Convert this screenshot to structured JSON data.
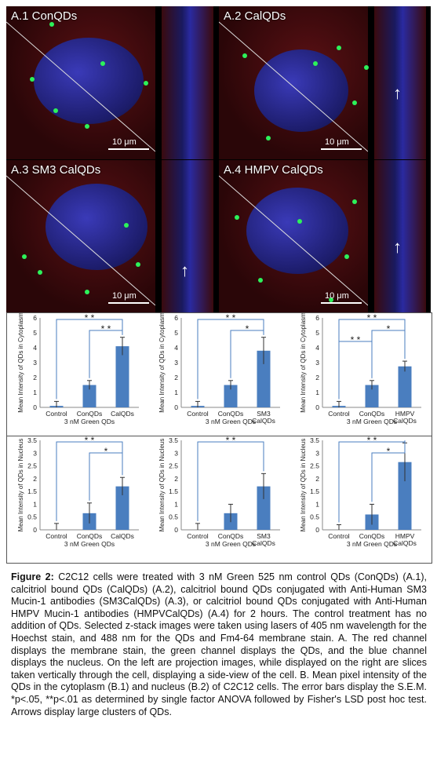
{
  "panels": [
    {
      "label": "A.1",
      "name": "ConQDs",
      "scale": "10 μm"
    },
    {
      "label": "A.2",
      "name": "CalQDs",
      "scale": "10 μm"
    },
    {
      "label": "A.3",
      "name": "SM3 CalQDs",
      "scale": "10 μm"
    },
    {
      "label": "A.4",
      "name": "HMPV CalQDs",
      "scale": "10 μm"
    }
  ],
  "colors": {
    "bar": "#4a7ebf",
    "bracket": "#4a7ebf",
    "membrane": "#c2262c",
    "qd": "#2cf25a",
    "nucleus": "#2a2aa8"
  },
  "chart_data": [
    {
      "type": "bar",
      "categories": [
        "Control",
        "ConQDs",
        "CalQDs"
      ],
      "values": [
        0.1,
        1.5,
        4.1
      ],
      "errors": [
        0.3,
        0.3,
        0.6
      ],
      "ylim": [
        0,
        6
      ],
      "yticks": [
        0,
        1,
        2,
        3,
        4,
        5,
        6
      ],
      "ylabel": "Mean Intensity of QDs in Cytoplasm",
      "xlabel": "3 nM Green QDs",
      "sig": [
        {
          "from": 0,
          "to": 2,
          "text": "* *"
        },
        {
          "from": 1,
          "to": 2,
          "text": "* *"
        }
      ]
    },
    {
      "type": "bar",
      "categories": [
        "Control",
        "ConQDs",
        "SM3 CalQDs"
      ],
      "values": [
        0.1,
        1.5,
        3.8
      ],
      "errors": [
        0.3,
        0.3,
        0.9
      ],
      "ylim": [
        0,
        6
      ],
      "yticks": [
        0,
        1,
        2,
        3,
        4,
        5,
        6
      ],
      "ylabel": "Mean Intensity of QDs in Cytoplasm",
      "xlabel": "3 nM Green QDs",
      "sig": [
        {
          "from": 0,
          "to": 2,
          "text": "* *"
        },
        {
          "from": 1,
          "to": 2,
          "text": "*"
        }
      ]
    },
    {
      "type": "bar",
      "categories": [
        "Control",
        "ConQDs",
        "HMPV CalQDs"
      ],
      "values": [
        0.1,
        1.5,
        2.75
      ],
      "errors": [
        0.3,
        0.3,
        0.35
      ],
      "ylim": [
        0,
        6
      ],
      "yticks": [
        0,
        1,
        2,
        3,
        4,
        5,
        6
      ],
      "ylabel": "Mean Intensity of QDs in Cytoplasm",
      "xlabel": "3 nM Green QDs",
      "sig": [
        {
          "from": 0,
          "to": 2,
          "text": "* *"
        },
        {
          "from": 1,
          "to": 2,
          "text": "*"
        },
        {
          "from": 0,
          "to": 1,
          "text": "* *"
        }
      ]
    },
    {
      "type": "bar",
      "categories": [
        "Control",
        "ConQDs",
        "CalQDs"
      ],
      "values": [
        0.05,
        0.65,
        1.7
      ],
      "errors": [
        0.2,
        0.4,
        0.35
      ],
      "ylim": [
        0,
        3.5
      ],
      "yticks": [
        0,
        0.5,
        1,
        1.5,
        2,
        2.5,
        3,
        3.5
      ],
      "ylabel": "Mean Intensity of QDs in Nucleus",
      "xlabel": "3 nM Green QDs",
      "sig": [
        {
          "from": 0,
          "to": 2,
          "text": "* *"
        },
        {
          "from": 1,
          "to": 2,
          "text": "*"
        }
      ]
    },
    {
      "type": "bar",
      "categories": [
        "Control",
        "ConQDs",
        "SM3 CalQDs"
      ],
      "values": [
        0.05,
        0.65,
        1.7
      ],
      "errors": [
        0.2,
        0.35,
        0.5
      ],
      "ylim": [
        0,
        3.5
      ],
      "yticks": [
        0,
        0.5,
        1,
        1.5,
        2,
        2.5,
        3,
        3.5
      ],
      "ylabel": "Mean Intensity of QDs in Nucleus",
      "xlabel": "3 nM Green QDs",
      "sig": [
        {
          "from": 0,
          "to": 2,
          "text": "* *"
        }
      ]
    },
    {
      "type": "bar",
      "categories": [
        "Control",
        "ConQDs",
        "HMPV CalQDs"
      ],
      "values": [
        0.05,
        0.6,
        2.65
      ],
      "errors": [
        0.15,
        0.4,
        0.75
      ],
      "ylim": [
        0,
        3.5
      ],
      "yticks": [
        0,
        0.5,
        1,
        1.5,
        2,
        2.5,
        3,
        3.5
      ],
      "ylabel": "Mean Intensity of QDs in Nucleus",
      "xlabel": "3 nM Green QDs",
      "sig": [
        {
          "from": 0,
          "to": 2,
          "text": "* *"
        },
        {
          "from": 1,
          "to": 2,
          "text": "*"
        }
      ]
    }
  ],
  "caption": {
    "label": "Figure 2:",
    "text": " C2C12 cells were treated with 3 nM Green 525 nm control QDs (ConQDs) (A.1), calcitriol bound QDs (CalQDs) (A.2), calcitriol bound QDs conjugated with Anti-Human SM3 Mucin-1 antibodies (SM3CalQDs) (A.3), or calcitriol bound QDs conjugated with Anti-Human HMPV Mucin-1 antibodies (HMPVCalQDs) (A.4) for 2 hours. The control treatment has no addition of QDs. Selected z-stack images were taken using lasers of 405 nm wavelength for the Hoechst stain, and 488 nm for the QDs and Fm4-64 membrane stain. A. The red channel displays the membrane stain, the green channel displays the QDs, and the blue channel displays the nucleus. On the left are projection images, while displayed on the right are slices taken vertically through the cell, displaying a side-view of the cell. B. Mean pixel intensity of the QDs in the cytoplasm (B.1) and nucleus (B.2) of C2C12 cells. The error bars display the S.E.M. *p<.05, **p<.01 as determined by single factor ANOVA followed by Fisher's LSD post hoc test. Arrows display large clusters of QDs."
  }
}
